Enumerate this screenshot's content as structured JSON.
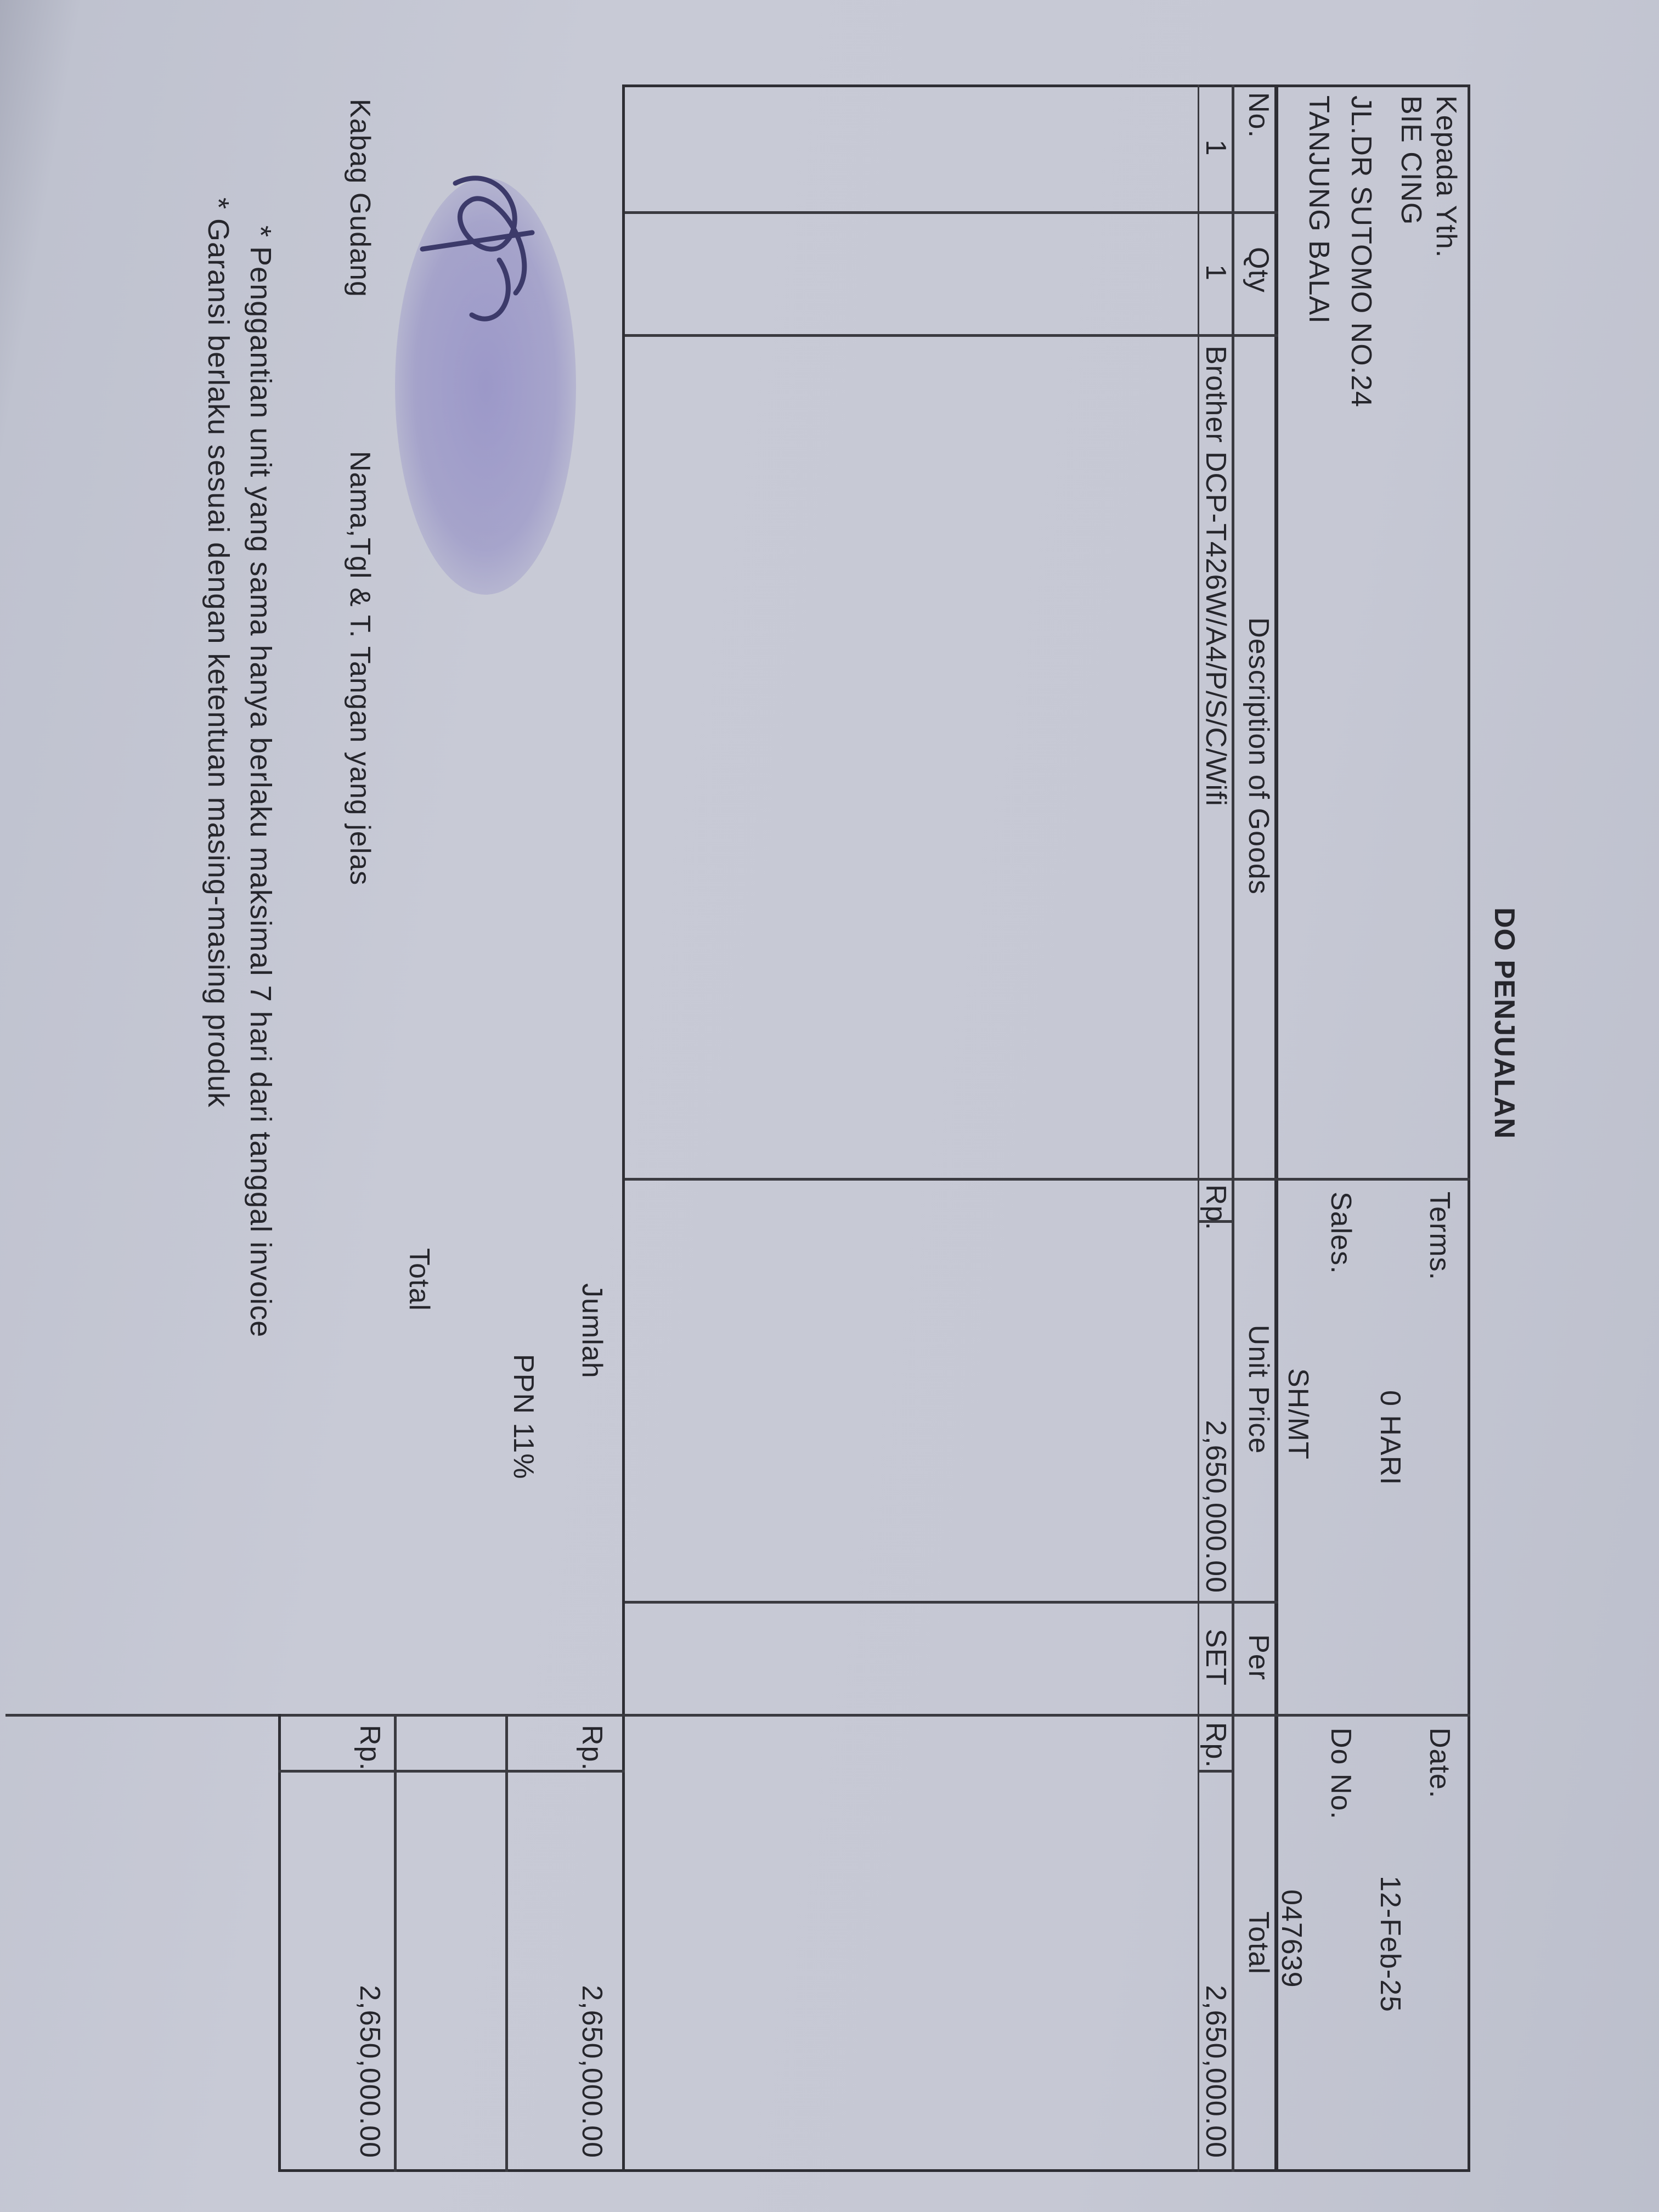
{
  "title": "DO PENJUALAN",
  "recipient": {
    "label": "Kepada Yth.",
    "name": "BIE CING",
    "address": "JL.DR SUTOMO NO.24",
    "city": "TANJUNG BALAI"
  },
  "meta": {
    "terms_label": "Terms.",
    "terms_value": "0 HARI",
    "sales_label": "Sales.",
    "sales_value": "SH/MT",
    "date_label": "Date.",
    "date_value": "12-Feb-25",
    "do_no_label": "Do No.",
    "do_no_value": "047639"
  },
  "table": {
    "headers": {
      "no": "No.",
      "qty": "Qty",
      "description": "Description of Goods",
      "unit_price": "Unit Price",
      "per": "Per",
      "total": "Total"
    },
    "rows": [
      {
        "no": "1",
        "qty": "1",
        "description": "Brother DCP-T426W/A4/P/S/C/Wifi",
        "unit_price_currency": "Rp.",
        "unit_price": "2,650,000.00",
        "per": "SET",
        "total_currency": "Rp.",
        "total": "2,650,000.00"
      }
    ]
  },
  "summary": {
    "subtotal_label": "Jumlah",
    "subtotal_currency": "Rp.",
    "subtotal_value": "2,650,000.00",
    "tax_label": "PPN 11%",
    "total_label": "Total",
    "total_currency": "Rp.",
    "total_value": "2,650,000.00"
  },
  "signature": {
    "role": "Kabag Gudang",
    "instruction": "Nama,Tgl & T. Tangan yang jelas"
  },
  "notes": [
    "* Penggantian unit yang sama hanya berlaku maksimal 7 hari dari tanggal invoice",
    "* Garansi berlaku sesuai dengan ketentuan masing-masing produk"
  ],
  "colors": {
    "paper": "#c8cad6",
    "ink": "#26262c",
    "stamp": "#7870be"
  }
}
